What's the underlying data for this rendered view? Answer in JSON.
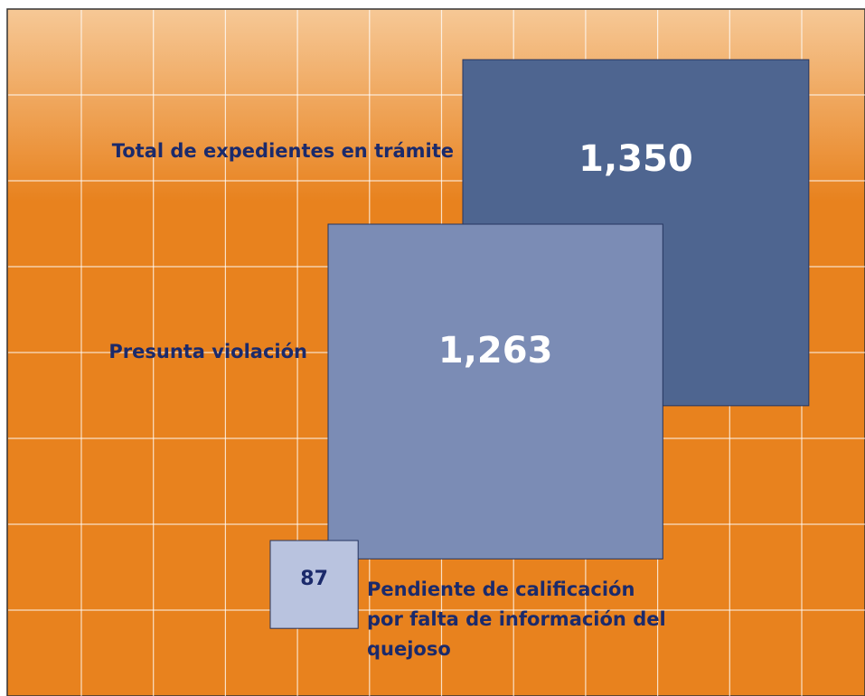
{
  "chart_data": {
    "type": "square",
    "categories": [
      "Total de expedientes en trámite",
      "Presunta violación",
      "Pendiente de calificación por falta de información del quejoso"
    ],
    "values": [
      1350,
      1263,
      87
    ],
    "value_labels": [
      "1,350",
      "1,263",
      "87"
    ],
    "colors": [
      "#4e6590",
      "#7b8cb5",
      "#b9c3df"
    ]
  }
}
